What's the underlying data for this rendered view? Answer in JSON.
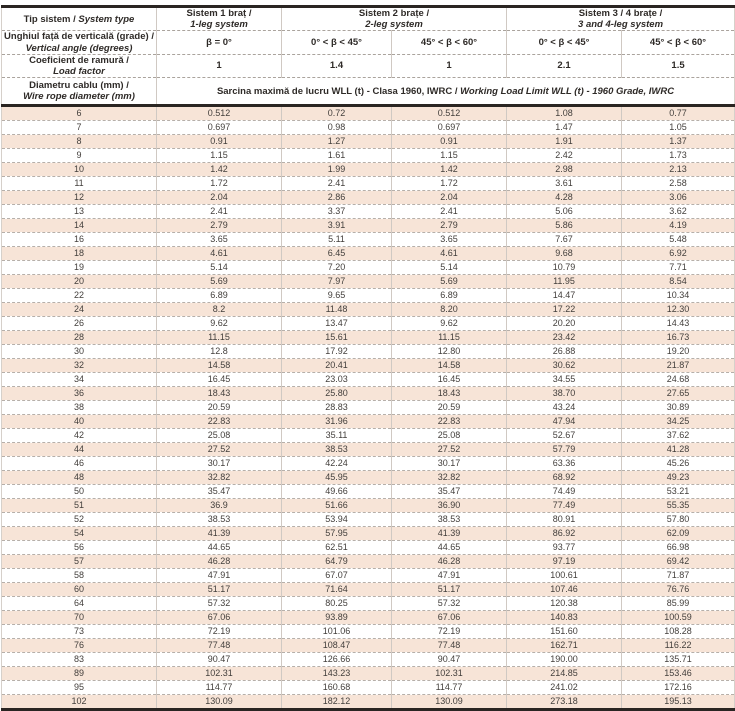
{
  "colors": {
    "row_alt_background": "#f7e4d7",
    "heavy_border": "#2a2522",
    "text": "#423e3b"
  },
  "table": {
    "header": {
      "system_type": {
        "ro": "Tip sistem /",
        "en": "System type"
      },
      "leg1": {
        "ro": "Sistem 1 braț /",
        "en": "1-leg system"
      },
      "leg2": {
        "ro": "Sistem 2 brațe /",
        "en": "2-leg system"
      },
      "leg34": {
        "ro": "Sistem 3 / 4 brațe /",
        "en": "3 and 4-leg system"
      },
      "vertical_angle": {
        "ro": "Unghiul față de verticală (grade) /",
        "en": "Vertical angle (degrees)"
      },
      "angles": [
        "β = 0°",
        "0° < β < 45°",
        "45° < β < 60°",
        "0° < β < 45°",
        "45° < β < 60°"
      ],
      "load_factor_label": {
        "ro": "Coeficient de ramură /",
        "en": "Load factor"
      },
      "load_factors": [
        "1",
        "1.4",
        "1",
        "2.1",
        "1.5"
      ],
      "rope_diameter": {
        "ro": "Diametru cablu (mm) /",
        "en": "Wire rope diameter (mm)"
      },
      "wll_title": {
        "ro": "Sarcina maximă de lucru WLL (t) - Clasa 1960, IWRC /",
        "en": "Working Load Limit WLL (t) - 1960 Grade, IWRC"
      }
    },
    "rows": [
      [
        "6",
        "0.512",
        "0.72",
        "0.512",
        "1.08",
        "0.77"
      ],
      [
        "7",
        "0.697",
        "0.98",
        "0.697",
        "1.47",
        "1.05"
      ],
      [
        "8",
        "0.91",
        "1.27",
        "0.91",
        "1.91",
        "1.37"
      ],
      [
        "9",
        "1.15",
        "1.61",
        "1.15",
        "2.42",
        "1.73"
      ],
      [
        "10",
        "1.42",
        "1.99",
        "1.42",
        "2.98",
        "2.13"
      ],
      [
        "11",
        "1.72",
        "2.41",
        "1.72",
        "3.61",
        "2.58"
      ],
      [
        "12",
        "2.04",
        "2.86",
        "2.04",
        "4.28",
        "3.06"
      ],
      [
        "13",
        "2.41",
        "3.37",
        "2.41",
        "5.06",
        "3.62"
      ],
      [
        "14",
        "2.79",
        "3.91",
        "2.79",
        "5.86",
        "4.19"
      ],
      [
        "16",
        "3.65",
        "5.11",
        "3.65",
        "7.67",
        "5.48"
      ],
      [
        "18",
        "4.61",
        "6.45",
        "4.61",
        "9.68",
        "6.92"
      ],
      [
        "19",
        "5.14",
        "7.20",
        "5.14",
        "10.79",
        "7.71"
      ],
      [
        "20",
        "5.69",
        "7.97",
        "5.69",
        "11.95",
        "8.54"
      ],
      [
        "22",
        "6.89",
        "9.65",
        "6.89",
        "14.47",
        "10.34"
      ],
      [
        "24",
        "8.2",
        "11.48",
        "8.20",
        "17.22",
        "12.30"
      ],
      [
        "26",
        "9.62",
        "13.47",
        "9.62",
        "20.20",
        "14.43"
      ],
      [
        "28",
        "11.15",
        "15.61",
        "11.15",
        "23.42",
        "16.73"
      ],
      [
        "30",
        "12.8",
        "17.92",
        "12.80",
        "26.88",
        "19.20"
      ],
      [
        "32",
        "14.58",
        "20.41",
        "14.58",
        "30.62",
        "21.87"
      ],
      [
        "34",
        "16.45",
        "23.03",
        "16.45",
        "34.55",
        "24.68"
      ],
      [
        "36",
        "18.43",
        "25.80",
        "18.43",
        "38.70",
        "27.65"
      ],
      [
        "38",
        "20.59",
        "28.83",
        "20.59",
        "43.24",
        "30.89"
      ],
      [
        "40",
        "22.83",
        "31.96",
        "22.83",
        "47.94",
        "34.25"
      ],
      [
        "42",
        "25.08",
        "35.11",
        "25.08",
        "52.67",
        "37.62"
      ],
      [
        "44",
        "27.52",
        "38.53",
        "27.52",
        "57.79",
        "41.28"
      ],
      [
        "46",
        "30.17",
        "42.24",
        "30.17",
        "63.36",
        "45.26"
      ],
      [
        "48",
        "32.82",
        "45.95",
        "32.82",
        "68.92",
        "49.23"
      ],
      [
        "50",
        "35.47",
        "49.66",
        "35.47",
        "74.49",
        "53.21"
      ],
      [
        "51",
        "36.9",
        "51.66",
        "36.90",
        "77.49",
        "55.35"
      ],
      [
        "52",
        "38.53",
        "53.94",
        "38.53",
        "80.91",
        "57.80"
      ],
      [
        "54",
        "41.39",
        "57.95",
        "41.39",
        "86.92",
        "62.09"
      ],
      [
        "56",
        "44.65",
        "62.51",
        "44.65",
        "93.77",
        "66.98"
      ],
      [
        "57",
        "46.28",
        "64.79",
        "46.28",
        "97.19",
        "69.42"
      ],
      [
        "58",
        "47.91",
        "67.07",
        "47.91",
        "100.61",
        "71.87"
      ],
      [
        "60",
        "51.17",
        "71.64",
        "51.17",
        "107.46",
        "76.76"
      ],
      [
        "64",
        "57.32",
        "80.25",
        "57.32",
        "120.38",
        "85.99"
      ],
      [
        "70",
        "67.06",
        "93.89",
        "67.06",
        "140.83",
        "100.59"
      ],
      [
        "73",
        "72.19",
        "101.06",
        "72.19",
        "151.60",
        "108.28"
      ],
      [
        "76",
        "77.48",
        "108.47",
        "77.48",
        "162.71",
        "116.22"
      ],
      [
        "83",
        "90.47",
        "126.66",
        "90.47",
        "190.00",
        "135.71"
      ],
      [
        "89",
        "102.31",
        "143.23",
        "102.31",
        "214.85",
        "153.46"
      ],
      [
        "95",
        "114.77",
        "160.68",
        "114.77",
        "241.02",
        "172.16"
      ],
      [
        "102",
        "130.09",
        "182.12",
        "130.09",
        "273.18",
        "195.13"
      ]
    ]
  }
}
